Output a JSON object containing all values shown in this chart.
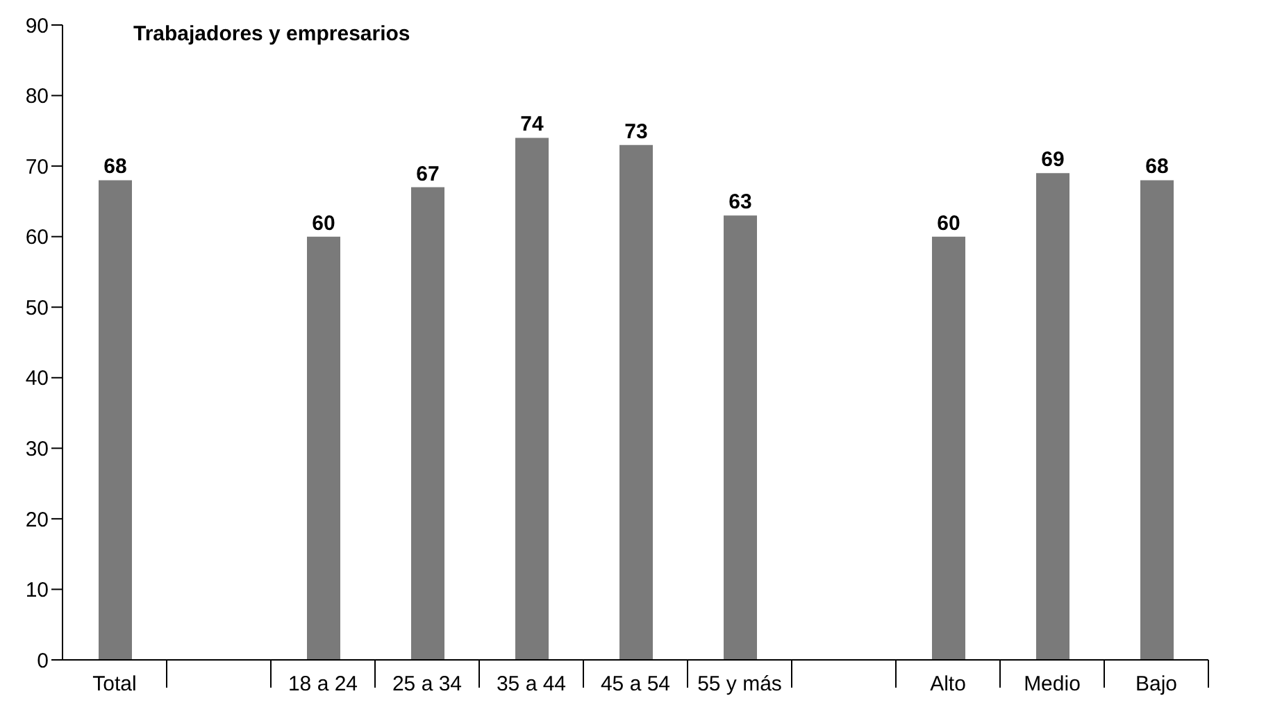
{
  "chart_data": {
    "type": "bar",
    "title": "Trabajadores y empresarios",
    "categories": [
      "Total",
      null,
      "18 a 24",
      "25 a 34",
      "35 a 44",
      "45 a 54",
      "55 y más",
      null,
      "Alto",
      "Medio",
      "Bajo"
    ],
    "values": [
      68,
      null,
      60,
      67,
      74,
      73,
      63,
      null,
      60,
      69,
      68
    ],
    "color": "#7a7a7a",
    "ylim": [
      0,
      90
    ],
    "yticks": [
      0,
      10,
      20,
      30,
      40,
      50,
      60,
      70,
      80,
      90
    ],
    "grid": false,
    "data_labels": true
  }
}
